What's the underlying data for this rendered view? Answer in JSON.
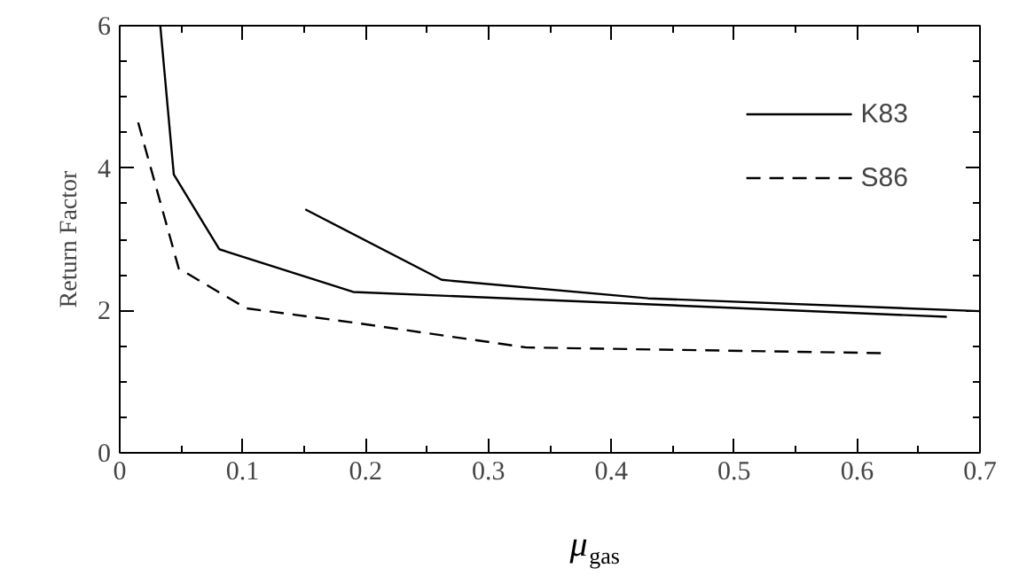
{
  "chart_data": {
    "type": "line",
    "xlabel": "μ$_{gas}$",
    "ylabel": "Return Factor",
    "xlim": [
      0,
      0.7
    ],
    "ylim": [
      0,
      6
    ],
    "xticks": [
      0,
      0.1,
      0.2,
      0.3,
      0.4,
      0.5,
      0.6,
      0.7
    ],
    "yticks": [
      0,
      2,
      4,
      6
    ],
    "legend": "top right",
    "grid": false,
    "marker": "none",
    "series": [
      {
        "name": "K83",
        "color": "#000000",
        "line_style": "solid",
        "x": [
          0.033,
          0.044,
          0.081,
          0.19,
          0.673
        ],
        "values": [
          6,
          3.91,
          2.86,
          2.26,
          1.91
        ]
      },
      {
        "color": "#000000",
        "line_style": "solid",
        "x": [
          0.151,
          0.262,
          0.43,
          0.7
        ],
        "values": [
          3.42,
          2.43,
          2.17,
          1.99
        ]
      },
      {
        "name": "S86",
        "color": "#000000",
        "line_style": "dashed",
        "x": [
          0.015,
          0.048,
          0.103,
          0.19,
          0.331,
          0.622
        ],
        "values": [
          4.64,
          2.59,
          2.03,
          1.83,
          1.48,
          1.4
        ]
      }
    ]
  }
}
